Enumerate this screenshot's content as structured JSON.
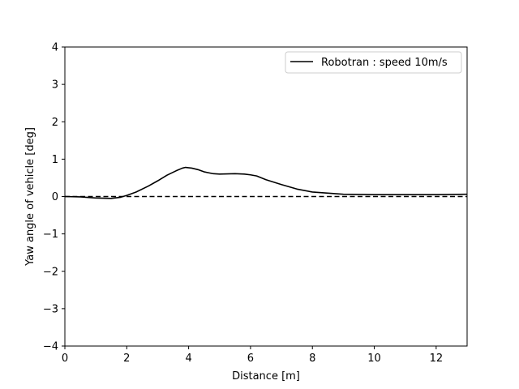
{
  "chart_data": {
    "type": "line",
    "title": "",
    "xlabel": "Distance [m]",
    "ylabel": "Yaw angle of vehicle [deg]",
    "xlim": [
      0,
      13
    ],
    "ylim": [
      -4,
      4
    ],
    "xticks": [
      0,
      2,
      4,
      6,
      8,
      10,
      12
    ],
    "yticks": [
      -4,
      -3,
      -2,
      -1,
      0,
      1,
      2,
      3,
      4
    ],
    "xtick_labels": [
      "0",
      "2",
      "4",
      "6",
      "8",
      "10",
      "12"
    ],
    "ytick_labels": [
      "−4",
      "−3",
      "−2",
      "−1",
      "0",
      "1",
      "2",
      "3",
      "4"
    ],
    "grid": false,
    "legend_position": "upper right",
    "series": [
      {
        "name": "Robotran : speed 10m/s",
        "style": "solid",
        "color": "#000000",
        "x": [
          0,
          0.5,
          1.0,
          1.5,
          1.8,
          2.0,
          2.3,
          2.7,
          3.0,
          3.3,
          3.6,
          3.8,
          3.9,
          4.1,
          4.3,
          4.5,
          4.8,
          5.0,
          5.5,
          5.8,
          6.0,
          6.2,
          6.5,
          7.0,
          7.5,
          8.0,
          8.5,
          9.0,
          10.0,
          11.0,
          12.0,
          13.0
        ],
        "y": [
          0.0,
          -0.01,
          -0.04,
          -0.05,
          -0.02,
          0.03,
          0.12,
          0.28,
          0.42,
          0.57,
          0.69,
          0.76,
          0.78,
          0.76,
          0.72,
          0.66,
          0.61,
          0.6,
          0.61,
          0.6,
          0.58,
          0.55,
          0.45,
          0.32,
          0.2,
          0.12,
          0.09,
          0.06,
          0.05,
          0.05,
          0.05,
          0.06
        ]
      },
      {
        "name": "",
        "style": "dashed",
        "color": "#000000",
        "x": [
          0,
          13
        ],
        "y": [
          0,
          0
        ]
      }
    ]
  }
}
